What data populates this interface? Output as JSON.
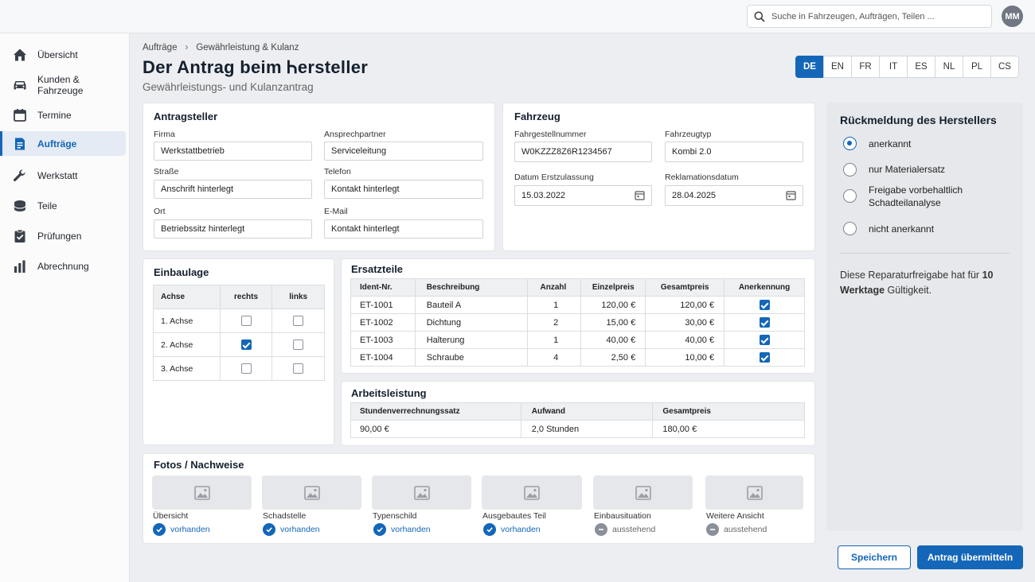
{
  "search": {
    "placeholder": "Suche in Fahrzeugen, Aufträgen, Teilen ..."
  },
  "user": {
    "initials": "MM"
  },
  "sidebar": {
    "items": [
      {
        "label": "Übersicht",
        "icon": "home-icon"
      },
      {
        "label": "Kunden & Fahrzeuge",
        "icon": "car-icon"
      },
      {
        "label": "Termine",
        "icon": "calendar-icon"
      },
      {
        "label": "Aufträge",
        "icon": "document-icon",
        "active": true
      },
      {
        "label": "Werkstatt",
        "icon": "wrench-icon"
      },
      {
        "label": "Teile",
        "icon": "parts-icon"
      },
      {
        "label": "Prüfungen",
        "icon": "clipboard-check-icon"
      },
      {
        "label": "Abrechnung",
        "icon": "bar-chart-icon"
      }
    ]
  },
  "breadcrumb": [
    "Aufträge",
    "Gewährleistung & Kulanz"
  ],
  "page": {
    "title": "Der Antrag beim Ꮒersteller",
    "subtitle": "Gewährleistungs- und Kulanzantrag"
  },
  "languages": {
    "items": [
      "DE",
      "EN",
      "FR",
      "IT",
      "ES",
      "NL",
      "PL",
      "CS"
    ],
    "active": "DE"
  },
  "applicant": {
    "title": "Antragsteller",
    "fields": [
      {
        "label": "Firma",
        "value": "Werkstattbetrieb"
      },
      {
        "label": "Ansprechpartner",
        "value": "Serviceleitung"
      },
      {
        "label": "Straße",
        "value": "Anschrift hinterlegt"
      },
      {
        "label": "Telefon",
        "value": "Kontakt hinterlegt"
      },
      {
        "label": "Ort",
        "value": "Betriebssitz hinterlegt"
      },
      {
        "label": "E-Mail",
        "value": "Kontakt hinterlegt"
      }
    ]
  },
  "vehicle": {
    "title": "Fahrzeug",
    "fields": [
      {
        "label": "Fahrgestellnummer",
        "value": "W0KZZZ8Z6R1234567"
      },
      {
        "label": "Fahrzeugtyp",
        "value": "Kombi 2.0"
      },
      {
        "label": "Datum Erstzulassung",
        "value": "15.03.2022"
      },
      {
        "label": "Reklamationsdatum",
        "value": "28.04.2025"
      }
    ]
  },
  "installation": {
    "title": "Einbaulage",
    "headers": [
      "Achse",
      "rechts",
      "links"
    ],
    "rows": [
      {
        "axle": "1. Achse",
        "right": false,
        "left": false
      },
      {
        "axle": "2. Achse",
        "right": true,
        "left": false
      },
      {
        "axle": "3. Achse",
        "right": false,
        "left": false
      }
    ]
  },
  "parts": {
    "title": "Ersatzteile",
    "headers": [
      "Ident-Nr.",
      "Beschreibung",
      "Anzahl",
      "Einzelpreis",
      "Gesamtpreis",
      "Anerkennung"
    ],
    "rows": [
      {
        "id": "ET-1001",
        "desc": "Bauteil A",
        "qty": "1",
        "unit": "120,00 €",
        "total": "120,00 €",
        "approved": true
      },
      {
        "id": "ET-1002",
        "desc": "Dichtung",
        "qty": "2",
        "unit": "15,00 €",
        "total": "30,00 €",
        "approved": true
      },
      {
        "id": "ET-1003",
        "desc": "Halterung",
        "qty": "1",
        "unit": "40,00 €",
        "total": "40,00 €",
        "approved": true
      },
      {
        "id": "ET-1004",
        "desc": "Schraube",
        "qty": "4",
        "unit": "2,50 €",
        "total": "10,00 €",
        "approved": true
      }
    ]
  },
  "labor": {
    "title": "Arbeitsleistung",
    "headers": [
      "Stundenverrechnungssatz",
      "Aufwand",
      "Gesamtpreis"
    ],
    "row": [
      "90,00 €",
      "2,0 Stunden",
      "180,00 €"
    ]
  },
  "photos": {
    "title": "Fotos / Nachweise",
    "items": [
      {
        "label": "Übersicht",
        "status": "vorhanden",
        "ok": true
      },
      {
        "label": "Schadstelle",
        "status": "vorhanden",
        "ok": true
      },
      {
        "label": "Typenschild",
        "status": "vorhanden",
        "ok": true
      },
      {
        "label": "Ausgebautes Teil",
        "status": "vorhanden",
        "ok": true
      },
      {
        "label": "Einbausituation",
        "status": "ausstehend",
        "ok": false
      },
      {
        "label": "Weitere Ansicht",
        "status": "ausstehend",
        "ok": false
      }
    ]
  },
  "manufacturer": {
    "title": "Rückmeldung des Herstellers",
    "options": [
      {
        "label": "anerkannt",
        "selected": true
      },
      {
        "label": "nur Materialersatz",
        "selected": false
      },
      {
        "label": "Freigabe vorbehaltlich Schadteilanalyse",
        "selected": false
      },
      {
        "label": "nicht anerkannt",
        "selected": false
      }
    ],
    "note_prefix": "Diese Reparaturfreigabe hat für",
    "note_bold": "10 Werktage",
    "note_suffix": "Gültigkeit."
  },
  "actions": {
    "save": "Speichern",
    "submit": "Antrag übermitteln"
  },
  "colors": {
    "accent": "#1466b8",
    "ok": "#1466b8",
    "pending": "#8a9097"
  }
}
